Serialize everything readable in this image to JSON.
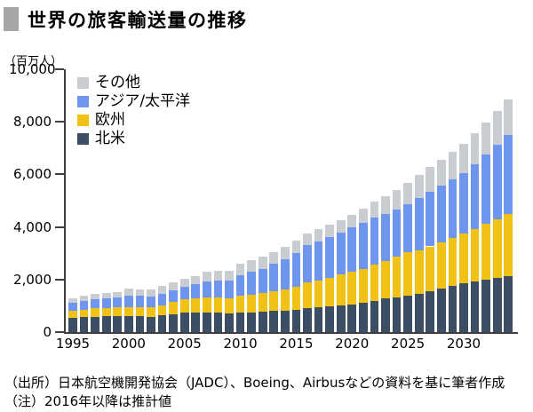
{
  "title": "世界の旅客輸送量の推移",
  "footnote": {
    "line1": "（出所）日本航空機開発協会（JADC）、Boeing、Airbusなどの資料を基に筆者作成",
    "line2": "（注）2016年以降は推計値"
  },
  "chart_data": {
    "type": "bar",
    "stacked": true,
    "title": "世界の旅客輸送量の推移",
    "unit_label": "（百万人）",
    "ylabel": "百万人",
    "ylim": [
      0,
      10000
    ],
    "yticks": [
      0,
      2000,
      4000,
      6000,
      8000,
      10000
    ],
    "ytick_labels": [
      "0",
      "2,000",
      "4,000",
      "6,000",
      "8,000",
      "10,000"
    ],
    "xtick_years": [
      1995,
      2000,
      2005,
      2010,
      2015,
      2020,
      2025,
      2030
    ],
    "grid": false,
    "legend_position": "top-left-inside",
    "note": "2016年以降は推計値",
    "years": [
      1995,
      1996,
      1997,
      1998,
      1999,
      2000,
      2001,
      2002,
      2003,
      2004,
      2005,
      2006,
      2007,
      2008,
      2009,
      2010,
      2011,
      2012,
      2013,
      2014,
      2015,
      2016,
      2017,
      2018,
      2019,
      2020,
      2021,
      2022,
      2023,
      2024,
      2025,
      2026,
      2027,
      2028,
      2029,
      2030,
      2031,
      2032,
      2033,
      2034
    ],
    "series": [
      {
        "name": "北米",
        "color": "#3c4e63",
        "values": [
          540,
          570,
          590,
          600,
          610,
          620,
          600,
          590,
          630,
          690,
          750,
          740,
          750,
          740,
          700,
          740,
          750,
          770,
          800,
          820,
          850,
          900,
          930,
          970,
          1010,
          1060,
          1110,
          1180,
          1270,
          1330,
          1400,
          1460,
          1560,
          1640,
          1740,
          1850,
          1930,
          2000,
          2070,
          2140
        ]
      },
      {
        "name": "欧州",
        "color": "#f1c115",
        "values": [
          270,
          290,
          310,
          320,
          330,
          340,
          340,
          340,
          400,
          450,
          500,
          530,
          570,
          580,
          570,
          640,
          680,
          710,
          770,
          800,
          870,
          980,
          1040,
          1100,
          1170,
          1240,
          1300,
          1380,
          1420,
          1530,
          1640,
          1640,
          1700,
          1760,
          1830,
          1900,
          2000,
          2110,
          2220,
          2340
        ]
      },
      {
        "name": "アジア/太平洋",
        "color": "#6f96ef",
        "values": [
          300,
          320,
          340,
          355,
          385,
          440,
          430,
          430,
          435,
          455,
          475,
          545,
          620,
          640,
          680,
          790,
          860,
          930,
          1030,
          1150,
          1290,
          1420,
          1490,
          1560,
          1610,
          1670,
          1740,
          1800,
          1810,
          1810,
          1830,
          1990,
          2090,
          2160,
          2230,
          2300,
          2470,
          2650,
          2830,
          3020
        ]
      },
      {
        "name": "その他",
        "color": "#c9cdd1",
        "values": [
          170,
          200,
          200,
          200,
          210,
          250,
          250,
          250,
          285,
          300,
          315,
          330,
          360,
          360,
          370,
          430,
          440,
          450,
          450,
          460,
          470,
          440,
          450,
          460,
          470,
          480,
          540,
          600,
          670,
          740,
          820,
          880,
          950,
          1000,
          1050,
          1100,
          1160,
          1220,
          1285,
          1350
        ]
      }
    ],
    "legend_order_top_to_bottom": [
      "その他",
      "アジア/太平洋",
      "欧州",
      "北米"
    ]
  }
}
